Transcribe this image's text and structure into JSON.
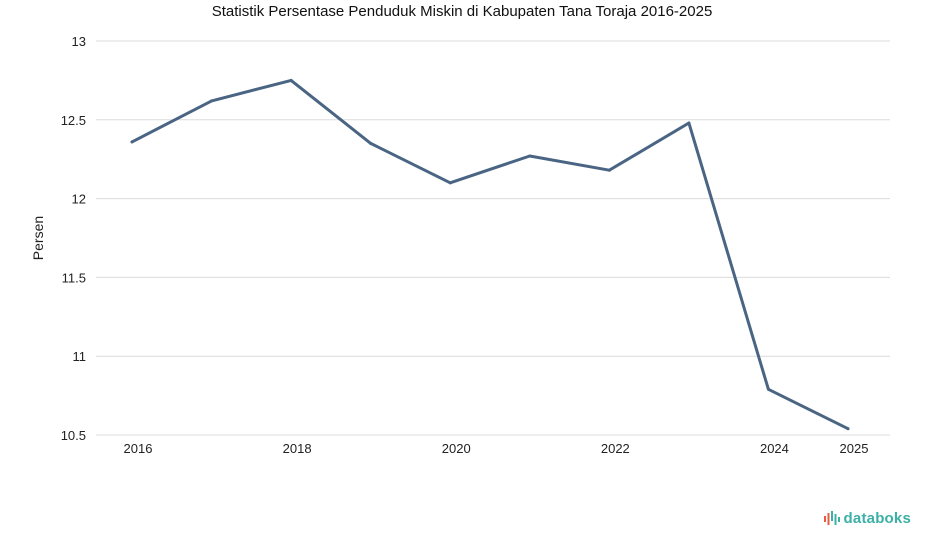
{
  "chart_data": {
    "type": "line",
    "title": "Statistik Persentase Penduduk Miskin di Kabupaten Tana Toraja 2016-2025",
    "xlabel": "",
    "ylabel": "Persen",
    "x": [
      2016,
      2017,
      2018,
      2019,
      2020,
      2021,
      2022,
      2023,
      2024,
      2025
    ],
    "series": [
      {
        "name": "Persentase Penduduk Miskin",
        "values": [
          12.36,
          12.62,
          12.75,
          12.35,
          12.1,
          12.27,
          12.18,
          12.48,
          10.79,
          10.54
        ]
      }
    ],
    "x_ticks": [
      "2016",
      "2018",
      "2020",
      "2022",
      "2024",
      "2025"
    ],
    "y_ticks": [
      "10.5",
      "11",
      "11.5",
      "12",
      "12.5",
      "13"
    ],
    "ylim": [
      10.5,
      13
    ],
    "grid": true,
    "line_color": "#4a6584"
  },
  "brand": {
    "name": "databoks",
    "color": "#3bb0a6",
    "accent": "#e85b3f"
  }
}
